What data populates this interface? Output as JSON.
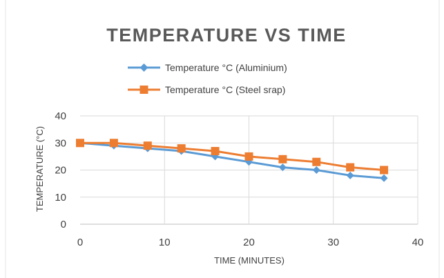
{
  "chart_data": {
    "type": "line",
    "title": "TEMPERATURE  VS TIME",
    "xlabel": "TIME (MINUTES)",
    "ylabel": "TEMPERATURE (°C)",
    "xlim": [
      0,
      40
    ],
    "ylim": [
      0,
      40
    ],
    "x_ticks": [
      "0",
      "10",
      "20",
      "30",
      "40"
    ],
    "y_ticks": [
      "0",
      "10",
      "20",
      "30",
      "40"
    ],
    "grid": true,
    "legend_position": "top",
    "x": [
      0,
      4,
      8,
      12,
      16,
      20,
      24,
      28,
      32,
      36
    ],
    "series": [
      {
        "name": "Temperature °C (Aluminium)",
        "color": "#5b9bd5",
        "marker": "diamond",
        "values": [
          30,
          29,
          28,
          27,
          25,
          23,
          21,
          20,
          18,
          17
        ]
      },
      {
        "name": "Temperature °C (Steel srap)",
        "color": "#ed7d31",
        "marker": "square",
        "values": [
          30,
          30,
          29,
          28,
          27,
          25,
          24,
          23,
          21,
          20
        ]
      }
    ]
  }
}
